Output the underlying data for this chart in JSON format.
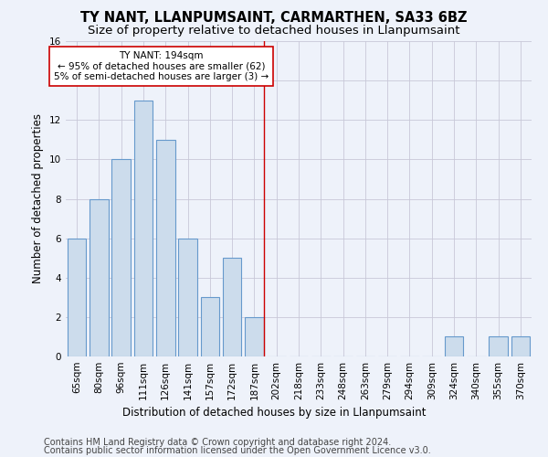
{
  "title_line1": "TY NANT, LLANPUMSAINT, CARMARTHEN, SA33 6BZ",
  "title_line2": "Size of property relative to detached houses in Llanpumsaint",
  "xlabel": "Distribution of detached houses by size in Llanpumsaint",
  "ylabel": "Number of detached properties",
  "footer_line1": "Contains HM Land Registry data © Crown copyright and database right 2024.",
  "footer_line2": "Contains public sector information licensed under the Open Government Licence v3.0.",
  "categories": [
    "65sqm",
    "80sqm",
    "96sqm",
    "111sqm",
    "126sqm",
    "141sqm",
    "157sqm",
    "172sqm",
    "187sqm",
    "202sqm",
    "218sqm",
    "233sqm",
    "248sqm",
    "263sqm",
    "279sqm",
    "294sqm",
    "309sqm",
    "324sqm",
    "340sqm",
    "355sqm",
    "370sqm"
  ],
  "values": [
    6,
    8,
    10,
    13,
    11,
    6,
    3,
    5,
    2,
    0,
    0,
    0,
    0,
    0,
    0,
    0,
    0,
    1,
    0,
    1,
    1
  ],
  "bar_color": "#ccdcec",
  "bar_edgecolor": "#6699cc",
  "vline_x_index": 8.45,
  "vline_color": "#cc0000",
  "annotation_text": "TY NANT: 194sqm\n← 95% of detached houses are smaller (62)\n5% of semi-detached houses are larger (3) →",
  "annotation_box_edgecolor": "#cc0000",
  "annotation_box_facecolor": "#ffffff",
  "ylim": [
    0,
    16
  ],
  "yticks": [
    0,
    2,
    4,
    6,
    8,
    10,
    12,
    14,
    16
  ],
  "grid_color": "#c8c8d8",
  "background_color": "#eef2fa",
  "title_fontsize": 10.5,
  "subtitle_fontsize": 9.5,
  "axis_label_fontsize": 8.5,
  "tick_fontsize": 7.5,
  "footer_fontsize": 7
}
